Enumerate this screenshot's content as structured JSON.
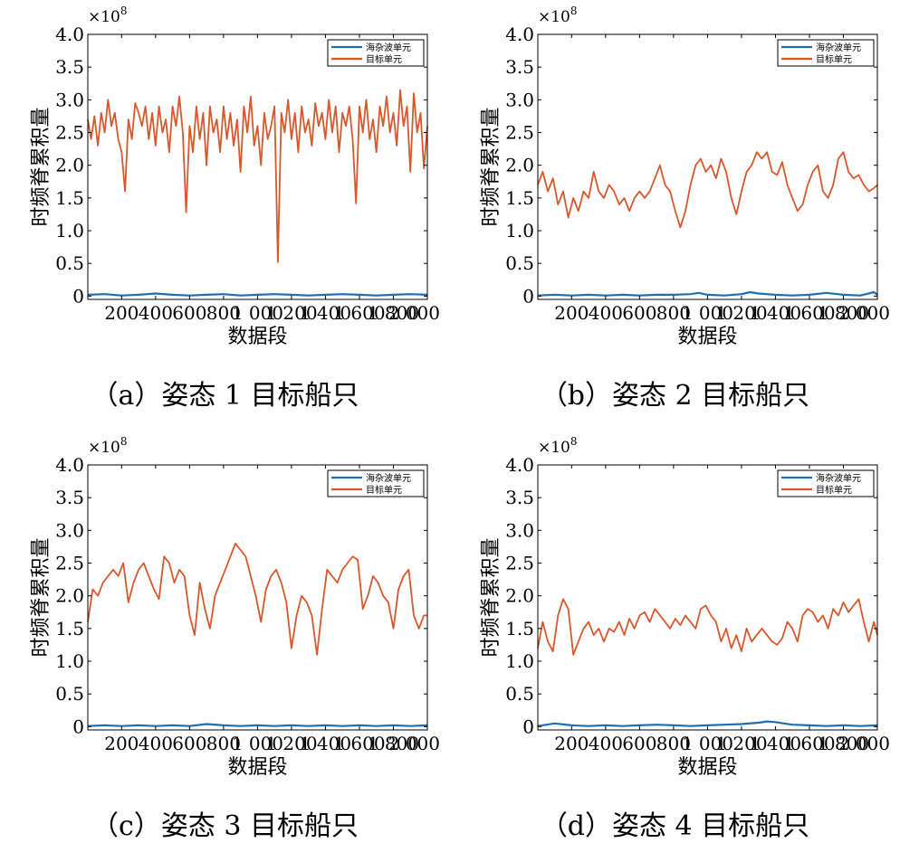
{
  "chart_data": [
    {
      "type": "line",
      "caption": "（a）姿态 1 目标船只",
      "xlabel": "数据段",
      "ylabel": "时频脊累积量",
      "exponent_label": "×10",
      "exponent_power": "8",
      "xlim": [
        1,
        2000
      ],
      "ylim": [
        -0.05,
        4.0
      ],
      "xticks": [
        200,
        400,
        600,
        800,
        1000,
        1200,
        1400,
        1600,
        1800,
        2000
      ],
      "xtick_labels": [
        "200",
        "400",
        "600",
        "800",
        "1 000",
        "1 200",
        "1 400",
        "1 600",
        "1 800",
        "2 000"
      ],
      "yticks": [
        0,
        0.5,
        1.0,
        1.5,
        2.0,
        2.5,
        3.0,
        3.5,
        4.0
      ],
      "ytick_labels": [
        "0",
        "0.5",
        "1.0",
        "1.5",
        "2.0",
        "2.5",
        "3.0",
        "3.5",
        "4.0"
      ],
      "legend_position": "top-right",
      "series": [
        {
          "name": "海杂波单元",
          "color": "#1f6fb0",
          "x": [
            1,
            100,
            200,
            300,
            400,
            500,
            600,
            700,
            800,
            900,
            1000,
            1100,
            1200,
            1300,
            1400,
            1500,
            1600,
            1700,
            1800,
            1900,
            2000
          ],
          "values": [
            0.02,
            0.03,
            0.01,
            0.02,
            0.04,
            0.02,
            0.01,
            0.02,
            0.03,
            0.01,
            0.02,
            0.03,
            0.02,
            0.01,
            0.02,
            0.03,
            0.02,
            0.01,
            0.02,
            0.03,
            0.02
          ]
        },
        {
          "name": "目标单元",
          "color": "#d9582b",
          "x": [
            1,
            20,
            40,
            60,
            80,
            100,
            120,
            140,
            160,
            180,
            200,
            220,
            240,
            260,
            280,
            300,
            320,
            340,
            360,
            380,
            400,
            420,
            440,
            460,
            480,
            500,
            520,
            540,
            560,
            580,
            600,
            620,
            640,
            660,
            680,
            700,
            720,
            740,
            760,
            780,
            800,
            820,
            840,
            860,
            880,
            900,
            920,
            940,
            960,
            980,
            1000,
            1020,
            1040,
            1060,
            1080,
            1100,
            1120,
            1140,
            1160,
            1180,
            1200,
            1220,
            1240,
            1260,
            1280,
            1300,
            1320,
            1340,
            1360,
            1380,
            1400,
            1420,
            1440,
            1460,
            1480,
            1500,
            1520,
            1540,
            1560,
            1580,
            1600,
            1620,
            1640,
            1660,
            1680,
            1700,
            1720,
            1740,
            1760,
            1780,
            1800,
            1820,
            1840,
            1860,
            1880,
            1900,
            1920,
            1940,
            1960,
            1980,
            2000
          ],
          "values": [
            2.7,
            2.4,
            2.75,
            2.3,
            2.8,
            2.5,
            3.0,
            2.6,
            2.8,
            2.4,
            2.2,
            1.6,
            2.7,
            2.4,
            2.95,
            2.8,
            2.6,
            2.9,
            2.4,
            2.8,
            2.3,
            2.9,
            2.5,
            2.7,
            2.2,
            2.9,
            2.6,
            3.05,
            2.5,
            1.28,
            2.6,
            2.2,
            2.9,
            2.4,
            2.8,
            2.0,
            2.9,
            2.5,
            2.7,
            2.2,
            2.9,
            2.4,
            2.8,
            2.3,
            2.7,
            1.9,
            2.9,
            2.5,
            3.05,
            2.3,
            2.6,
            2.0,
            2.8,
            2.4,
            2.6,
            2.9,
            0.52,
            2.8,
            2.5,
            3.0,
            2.4,
            2.8,
            2.2,
            2.9,
            2.5,
            2.7,
            2.3,
            2.95,
            2.6,
            2.8,
            2.4,
            3.0,
            2.5,
            2.9,
            2.2,
            2.8,
            2.6,
            2.9,
            2.4,
            1.42,
            2.9,
            2.5,
            3.0,
            2.4,
            2.7,
            2.2,
            2.9,
            2.6,
            3.05,
            2.5,
            2.8,
            2.3,
            3.15,
            2.6,
            2.9,
            1.9,
            3.1,
            2.5,
            2.8,
            1.95,
            2.6
          ]
        }
      ]
    },
    {
      "type": "line",
      "caption": "（b）姿态 2 目标船只",
      "xlabel": "数据段",
      "ylabel": "时频脊累积量",
      "exponent_label": "×10",
      "exponent_power": "8",
      "xlim": [
        1,
        2000
      ],
      "ylim": [
        -0.05,
        4.0
      ],
      "xticks": [
        200,
        400,
        600,
        800,
        1000,
        1200,
        1400,
        1600,
        1800,
        2000
      ],
      "xtick_labels": [
        "200",
        "400",
        "600",
        "800",
        "1 000",
        "1 200",
        "1 400",
        "1 600",
        "1 800",
        "2 000"
      ],
      "yticks": [
        0,
        0.5,
        1.0,
        1.5,
        2.0,
        2.5,
        3.0,
        3.5,
        4.0
      ],
      "ytick_labels": [
        "0",
        "0.5",
        "1.0",
        "1.5",
        "2.0",
        "2.5",
        "3.0",
        "3.5",
        "4.0"
      ],
      "legend_position": "top-right",
      "series": [
        {
          "name": "海杂波单元",
          "color": "#1f6fb0",
          "x": [
            1,
            100,
            200,
            300,
            400,
            500,
            600,
            700,
            800,
            900,
            950,
            1000,
            1100,
            1200,
            1250,
            1300,
            1400,
            1500,
            1600,
            1700,
            1800,
            1900,
            1980,
            2000
          ],
          "values": [
            0.01,
            0.02,
            0.01,
            0.02,
            0.01,
            0.02,
            0.01,
            0.02,
            0.02,
            0.03,
            0.05,
            0.02,
            0.01,
            0.03,
            0.06,
            0.04,
            0.02,
            0.01,
            0.02,
            0.05,
            0.02,
            0.01,
            0.06,
            0.02
          ]
        },
        {
          "name": "目标单元",
          "color": "#d9582b",
          "x": [
            1,
            30,
            60,
            90,
            120,
            150,
            180,
            210,
            240,
            270,
            300,
            330,
            360,
            390,
            420,
            450,
            480,
            510,
            540,
            570,
            600,
            630,
            660,
            690,
            720,
            750,
            780,
            810,
            840,
            870,
            900,
            930,
            960,
            990,
            1020,
            1050,
            1080,
            1110,
            1140,
            1170,
            1200,
            1230,
            1260,
            1290,
            1320,
            1350,
            1380,
            1410,
            1440,
            1470,
            1500,
            1530,
            1560,
            1590,
            1620,
            1650,
            1680,
            1710,
            1740,
            1770,
            1800,
            1830,
            1860,
            1890,
            1920,
            1950,
            1980,
            2000
          ],
          "values": [
            1.7,
            1.9,
            1.6,
            1.8,
            1.4,
            1.6,
            1.2,
            1.5,
            1.3,
            1.6,
            1.5,
            1.9,
            1.6,
            1.5,
            1.7,
            1.6,
            1.4,
            1.5,
            1.3,
            1.5,
            1.6,
            1.5,
            1.6,
            1.8,
            2.0,
            1.7,
            1.6,
            1.3,
            1.05,
            1.3,
            1.7,
            2.0,
            2.1,
            1.9,
            2.0,
            1.8,
            2.1,
            1.9,
            1.5,
            1.25,
            1.6,
            1.9,
            2.0,
            2.2,
            2.1,
            2.2,
            1.9,
            1.85,
            2.05,
            1.7,
            1.5,
            1.3,
            1.4,
            1.7,
            1.9,
            2.0,
            1.6,
            1.5,
            1.7,
            2.1,
            2.2,
            1.9,
            1.8,
            1.85,
            1.7,
            1.6,
            1.65,
            1.7
          ]
        }
      ]
    },
    {
      "type": "line",
      "caption": "（c）姿态 3 目标船只",
      "xlabel": "数据段",
      "ylabel": "时频脊累积量",
      "exponent_label": "×10",
      "exponent_power": "8",
      "xlim": [
        1,
        2000
      ],
      "ylim": [
        -0.05,
        4.0
      ],
      "xticks": [
        200,
        400,
        600,
        800,
        1000,
        1200,
        1400,
        1600,
        1800,
        2000
      ],
      "xtick_labels": [
        "200",
        "400",
        "600",
        "800",
        "1 000",
        "1 200",
        "1 400",
        "1 600",
        "1 800",
        "2 000"
      ],
      "yticks": [
        0,
        0.5,
        1.0,
        1.5,
        2.0,
        2.5,
        3.0,
        3.5,
        4.0
      ],
      "ytick_labels": [
        "0",
        "0.5",
        "1.0",
        "1.5",
        "2.0",
        "2.5",
        "3.0",
        "3.5",
        "4.0"
      ],
      "legend_position": "top-right",
      "series": [
        {
          "name": "海杂波单元",
          "color": "#1f6fb0",
          "x": [
            1,
            100,
            200,
            300,
            400,
            500,
            600,
            700,
            800,
            900,
            1000,
            1100,
            1200,
            1300,
            1400,
            1500,
            1600,
            1700,
            1800,
            1900,
            2000
          ],
          "values": [
            0.01,
            0.02,
            0.01,
            0.02,
            0.01,
            0.02,
            0.01,
            0.04,
            0.02,
            0.01,
            0.02,
            0.01,
            0.02,
            0.01,
            0.02,
            0.01,
            0.02,
            0.01,
            0.02,
            0.01,
            0.02
          ]
        },
        {
          "name": "目标单元",
          "color": "#d9582b",
          "x": [
            1,
            30,
            60,
            90,
            120,
            150,
            180,
            210,
            240,
            270,
            300,
            330,
            360,
            390,
            420,
            450,
            480,
            510,
            540,
            570,
            600,
            630,
            660,
            690,
            720,
            750,
            780,
            810,
            840,
            870,
            900,
            930,
            960,
            990,
            1020,
            1050,
            1080,
            1110,
            1140,
            1170,
            1200,
            1230,
            1260,
            1290,
            1320,
            1350,
            1380,
            1410,
            1440,
            1470,
            1500,
            1530,
            1560,
            1590,
            1620,
            1650,
            1680,
            1710,
            1740,
            1770,
            1800,
            1830,
            1860,
            1890,
            1920,
            1950,
            1980,
            2000
          ],
          "values": [
            1.6,
            2.1,
            2.0,
            2.2,
            2.3,
            2.4,
            2.3,
            2.5,
            1.9,
            2.2,
            2.4,
            2.5,
            2.3,
            2.1,
            1.95,
            2.6,
            2.5,
            2.2,
            2.4,
            2.3,
            1.7,
            1.4,
            2.2,
            1.8,
            1.5,
            2.0,
            2.2,
            2.4,
            2.6,
            2.8,
            2.7,
            2.6,
            2.3,
            2.0,
            1.6,
            2.1,
            2.3,
            2.4,
            2.2,
            1.9,
            1.2,
            1.7,
            2.0,
            1.9,
            1.7,
            1.1,
            1.8,
            2.4,
            2.3,
            2.2,
            2.4,
            2.5,
            2.6,
            2.55,
            1.8,
            2.0,
            2.3,
            2.2,
            2.0,
            1.9,
            1.5,
            2.1,
            2.3,
            2.4,
            1.7,
            1.5,
            1.7,
            1.7
          ]
        }
      ]
    },
    {
      "type": "line",
      "caption": "（d）姿态 4 目标船只",
      "xlabel": "数据段",
      "ylabel": "时频脊累积量",
      "exponent_label": "×10",
      "exponent_power": "8",
      "xlim": [
        1,
        2000
      ],
      "ylim": [
        -0.05,
        4.0
      ],
      "xticks": [
        200,
        400,
        600,
        800,
        1000,
        1200,
        1400,
        1600,
        1800,
        2000
      ],
      "xtick_labels": [
        "200",
        "400",
        "600",
        "800",
        "1 000",
        "1 200",
        "1 400",
        "1 600",
        "1 800",
        "2 000"
      ],
      "yticks": [
        0,
        0.5,
        1.0,
        1.5,
        2.0,
        2.5,
        3.0,
        3.5,
        4.0
      ],
      "ytick_labels": [
        "0",
        "0.5",
        "1.0",
        "1.5",
        "2.0",
        "2.5",
        "3.0",
        "3.5",
        "4.0"
      ],
      "legend_position": "top-right",
      "series": [
        {
          "name": "海杂波单元",
          "color": "#1f6fb0",
          "x": [
            1,
            100,
            200,
            300,
            400,
            500,
            600,
            700,
            800,
            900,
            1000,
            1100,
            1200,
            1300,
            1350,
            1400,
            1450,
            1500,
            1600,
            1700,
            1800,
            1900,
            2000
          ],
          "values": [
            0.01,
            0.05,
            0.02,
            0.01,
            0.02,
            0.01,
            0.02,
            0.03,
            0.02,
            0.01,
            0.02,
            0.03,
            0.04,
            0.06,
            0.08,
            0.07,
            0.05,
            0.03,
            0.02,
            0.01,
            0.02,
            0.01,
            0.02
          ]
        },
        {
          "name": "目标单元",
          "color": "#d9582b",
          "x": [
            1,
            30,
            60,
            90,
            120,
            150,
            180,
            210,
            240,
            270,
            300,
            330,
            360,
            390,
            420,
            450,
            480,
            510,
            540,
            570,
            600,
            630,
            660,
            690,
            720,
            750,
            780,
            810,
            840,
            870,
            900,
            930,
            960,
            990,
            1020,
            1050,
            1080,
            1110,
            1140,
            1170,
            1200,
            1230,
            1260,
            1290,
            1320,
            1350,
            1380,
            1410,
            1440,
            1470,
            1500,
            1530,
            1560,
            1590,
            1620,
            1650,
            1680,
            1710,
            1740,
            1770,
            1800,
            1830,
            1860,
            1890,
            1920,
            1950,
            1980,
            2000
          ],
          "values": [
            1.2,
            1.6,
            1.3,
            1.15,
            1.7,
            1.95,
            1.8,
            1.1,
            1.3,
            1.5,
            1.6,
            1.4,
            1.5,
            1.3,
            1.5,
            1.45,
            1.6,
            1.4,
            1.65,
            1.5,
            1.7,
            1.75,
            1.6,
            1.8,
            1.7,
            1.6,
            1.5,
            1.65,
            1.55,
            1.7,
            1.6,
            1.5,
            1.8,
            1.85,
            1.7,
            1.6,
            1.3,
            1.5,
            1.2,
            1.4,
            1.15,
            1.5,
            1.3,
            1.4,
            1.5,
            1.4,
            1.3,
            1.25,
            1.35,
            1.6,
            1.5,
            1.3,
            1.7,
            1.8,
            1.75,
            1.6,
            1.7,
            1.5,
            1.8,
            1.7,
            1.9,
            1.75,
            1.85,
            1.95,
            1.6,
            1.3,
            1.6,
            1.4
          ]
        }
      ]
    }
  ]
}
